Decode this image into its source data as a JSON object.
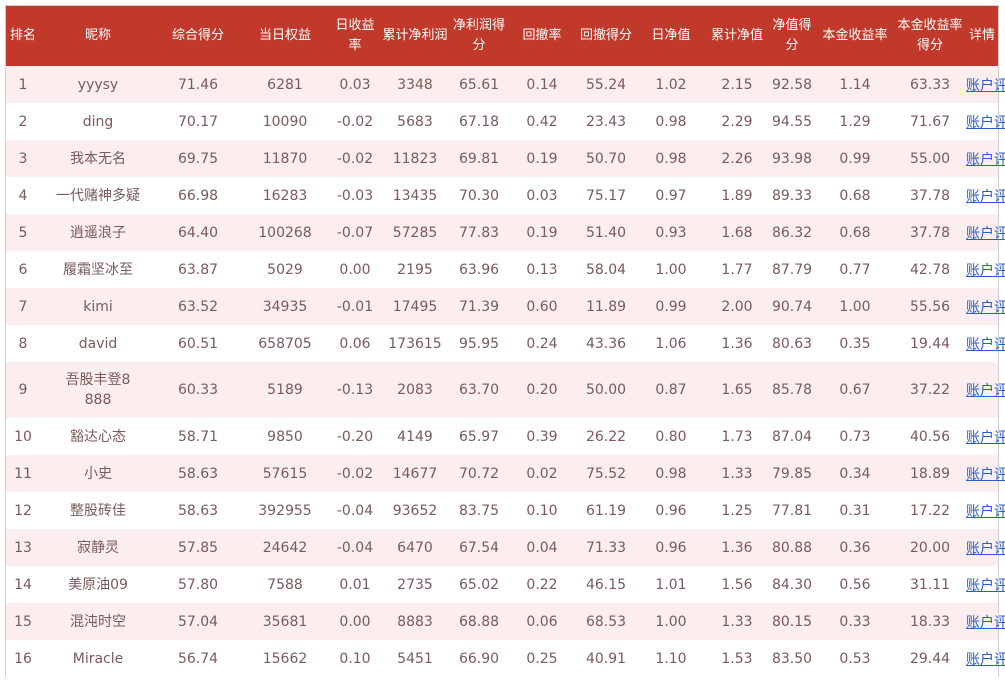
{
  "table": {
    "headers": {
      "rank": "排名",
      "nick": "昵称",
      "score": "综合得分",
      "equity": "当日权益",
      "daily_return": "日收益率",
      "cum_profit": "累计净利润",
      "profit_score": "净利润得分",
      "drawdown": "回撤率",
      "drawdown_score": "回撤得分",
      "daily_nav": "日净值",
      "cum_nav": "累计净值",
      "nav_score": "净值得分",
      "principal_return": "本金收益率",
      "principal_score": "本金收益率得分",
      "detail": "详情"
    },
    "link_label": "账户评估",
    "rows": [
      {
        "rank": "1",
        "nick": "yyysy",
        "score": "71.46",
        "equity": "6281",
        "daily_return": "0.03",
        "cum_profit": "3348",
        "profit_score": "65.61",
        "drawdown": "0.14",
        "drawdown_score": "55.24",
        "daily_nav": "1.02",
        "cum_nav": "2.15",
        "nav_score": "92.58",
        "principal_return": "1.14",
        "principal_score": "63.33",
        "detail": "账户评估"
      },
      {
        "rank": "2",
        "nick": "ding",
        "score": "70.17",
        "equity": "10090",
        "daily_return": "-0.02",
        "cum_profit": "5683",
        "profit_score": "67.18",
        "drawdown": "0.42",
        "drawdown_score": "23.43",
        "daily_nav": "0.98",
        "cum_nav": "2.29",
        "nav_score": "94.55",
        "principal_return": "1.29",
        "principal_score": "71.67",
        "detail": "账户评估"
      },
      {
        "rank": "3",
        "nick": "我本无名",
        "score": "69.75",
        "equity": "11870",
        "daily_return": "-0.02",
        "cum_profit": "11823",
        "profit_score": "69.81",
        "drawdown": "0.19",
        "drawdown_score": "50.70",
        "daily_nav": "0.98",
        "cum_nav": "2.26",
        "nav_score": "93.98",
        "principal_return": "0.99",
        "principal_score": "55.00",
        "detail": "账户评估"
      },
      {
        "rank": "4",
        "nick": "一代赌神多疑",
        "score": "66.98",
        "equity": "16283",
        "daily_return": "-0.03",
        "cum_profit": "13435",
        "profit_score": "70.30",
        "drawdown": "0.03",
        "drawdown_score": "75.17",
        "daily_nav": "0.97",
        "cum_nav": "1.89",
        "nav_score": "89.33",
        "principal_return": "0.68",
        "principal_score": "37.78",
        "detail": "账户评估"
      },
      {
        "rank": "5",
        "nick": "逍遥浪子",
        "score": "64.40",
        "equity": "100268",
        "daily_return": "-0.07",
        "cum_profit": "57285",
        "profit_score": "77.83",
        "drawdown": "0.19",
        "drawdown_score": "51.40",
        "daily_nav": "0.93",
        "cum_nav": "1.68",
        "nav_score": "86.32",
        "principal_return": "0.68",
        "principal_score": "37.78",
        "detail": "账户评估"
      },
      {
        "rank": "6",
        "nick": "履霜坚冰至",
        "score": "63.87",
        "equity": "5029",
        "daily_return": "0.00",
        "cum_profit": "2195",
        "profit_score": "63.96",
        "drawdown": "0.13",
        "drawdown_score": "58.04",
        "daily_nav": "1.00",
        "cum_nav": "1.77",
        "nav_score": "87.79",
        "principal_return": "0.77",
        "principal_score": "42.78",
        "detail": "账户评估"
      },
      {
        "rank": "7",
        "nick": "kimi",
        "score": "63.52",
        "equity": "34935",
        "daily_return": "-0.01",
        "cum_profit": "17495",
        "profit_score": "71.39",
        "drawdown": "0.60",
        "drawdown_score": "11.89",
        "daily_nav": "0.99",
        "cum_nav": "2.00",
        "nav_score": "90.74",
        "principal_return": "1.00",
        "principal_score": "55.56",
        "detail": "账户评估"
      },
      {
        "rank": "8",
        "nick": "david",
        "score": "60.51",
        "equity": "658705",
        "daily_return": "0.06",
        "cum_profit": "173615",
        "profit_score": "95.95",
        "drawdown": "0.24",
        "drawdown_score": "43.36",
        "daily_nav": "1.06",
        "cum_nav": "1.36",
        "nav_score": "80.63",
        "principal_return": "0.35",
        "principal_score": "19.44",
        "detail": "账户评估"
      },
      {
        "rank": "9",
        "nick": "吾股丰登8888",
        "score": "60.33",
        "equity": "5189",
        "daily_return": "-0.13",
        "cum_profit": "2083",
        "profit_score": "63.70",
        "drawdown": "0.20",
        "drawdown_score": "50.00",
        "daily_nav": "0.87",
        "cum_nav": "1.65",
        "nav_score": "85.78",
        "principal_return": "0.67",
        "principal_score": "37.22",
        "detail": "账户评估"
      },
      {
        "rank": "10",
        "nick": "豁达心态",
        "score": "58.71",
        "equity": "9850",
        "daily_return": "-0.20",
        "cum_profit": "4149",
        "profit_score": "65.97",
        "drawdown": "0.39",
        "drawdown_score": "26.22",
        "daily_nav": "0.80",
        "cum_nav": "1.73",
        "nav_score": "87.04",
        "principal_return": "0.73",
        "principal_score": "40.56",
        "detail": "账户评估"
      },
      {
        "rank": "11",
        "nick": "小史",
        "score": "58.63",
        "equity": "57615",
        "daily_return": "-0.02",
        "cum_profit": "14677",
        "profit_score": "70.72",
        "drawdown": "0.02",
        "drawdown_score": "75.52",
        "daily_nav": "0.98",
        "cum_nav": "1.33",
        "nav_score": "79.85",
        "principal_return": "0.34",
        "principal_score": "18.89",
        "detail": "账户评估"
      },
      {
        "rank": "12",
        "nick": "整股砖佳",
        "score": "58.63",
        "equity": "392955",
        "daily_return": "-0.04",
        "cum_profit": "93652",
        "profit_score": "83.75",
        "drawdown": "0.10",
        "drawdown_score": "61.19",
        "daily_nav": "0.96",
        "cum_nav": "1.25",
        "nav_score": "77.81",
        "principal_return": "0.31",
        "principal_score": "17.22",
        "detail": "账户评估"
      },
      {
        "rank": "13",
        "nick": "寂静灵",
        "score": "57.85",
        "equity": "24642",
        "daily_return": "-0.04",
        "cum_profit": "6470",
        "profit_score": "67.54",
        "drawdown": "0.04",
        "drawdown_score": "71.33",
        "daily_nav": "0.96",
        "cum_nav": "1.36",
        "nav_score": "80.88",
        "principal_return": "0.36",
        "principal_score": "20.00",
        "detail": "账户评估"
      },
      {
        "rank": "14",
        "nick": "美原油09",
        "score": "57.80",
        "equity": "7588",
        "daily_return": "0.01",
        "cum_profit": "2735",
        "profit_score": "65.02",
        "drawdown": "0.22",
        "drawdown_score": "46.15",
        "daily_nav": "1.01",
        "cum_nav": "1.56",
        "nav_score": "84.30",
        "principal_return": "0.56",
        "principal_score": "31.11",
        "detail": "账户评估"
      },
      {
        "rank": "15",
        "nick": "混沌时空",
        "score": "57.04",
        "equity": "35681",
        "daily_return": "0.00",
        "cum_profit": "8883",
        "profit_score": "68.88",
        "drawdown": "0.06",
        "drawdown_score": "68.53",
        "daily_nav": "1.00",
        "cum_nav": "1.33",
        "nav_score": "80.15",
        "principal_return": "0.33",
        "principal_score": "18.33",
        "detail": "账户评估"
      },
      {
        "rank": "16",
        "nick": "Miracle",
        "score": "56.74",
        "equity": "15662",
        "daily_return": "0.10",
        "cum_profit": "5451",
        "profit_score": "66.90",
        "drawdown": "0.25",
        "drawdown_score": "40.91",
        "daily_nav": "1.10",
        "cum_nav": "1.53",
        "nav_score": "83.50",
        "principal_return": "0.53",
        "principal_score": "29.44",
        "detail": "账户评估"
      }
    ]
  },
  "colors": {
    "header_bg": "#c0392b",
    "header_text": "#ffffff",
    "row_alt_bg": "#fceeee",
    "cell_text": "#7a5a5a",
    "link": "#2a5ccc"
  }
}
